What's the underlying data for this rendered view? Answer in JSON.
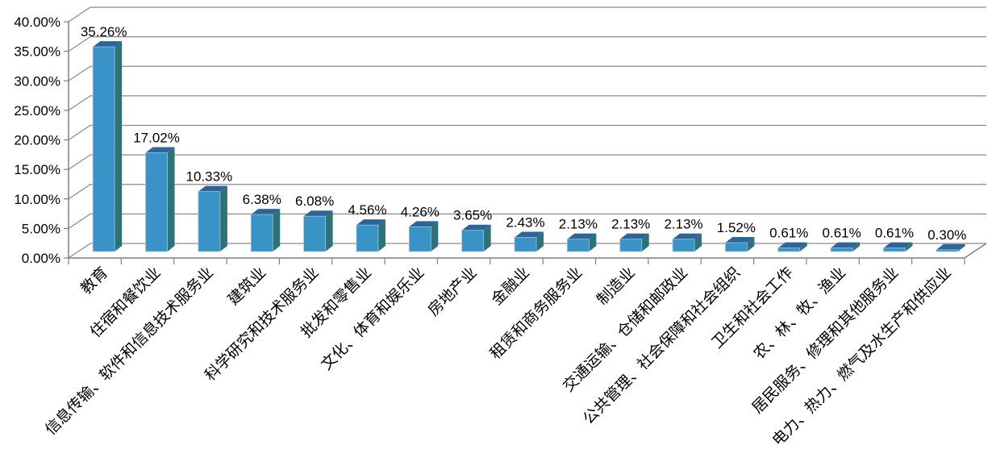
{
  "chart_data": {
    "type": "bar",
    "style": "3d-column",
    "title": "",
    "xlabel": "",
    "ylabel": "",
    "grid": true,
    "legend": null,
    "categories": [
      "教育",
      "住宿和餐饮业",
      "信息传输、软件和信息技术服务业",
      "建筑业",
      "科学研究和技术服务业",
      "批发和零售业",
      "文化、体育和娱乐业",
      "房地产业",
      "金融业",
      "租赁和商务服务业",
      "制造业",
      "交通运输、仓储和邮政业",
      "公共管理、社会保障和社会组织",
      "卫生和社会工作",
      "农、林、牧、渔业",
      "居民服务、修理和其他服务业",
      "电力、热力、燃气及水生产和供应业"
    ],
    "values": [
      35.26,
      17.02,
      10.33,
      6.38,
      6.08,
      4.56,
      4.26,
      3.65,
      2.43,
      2.13,
      2.13,
      2.13,
      1.52,
      0.61,
      0.61,
      0.61,
      0.3
    ],
    "data_labels": [
      "35.26%",
      "17.02%",
      "10.33%",
      "6.38%",
      "6.08%",
      "4.56%",
      "4.26%",
      "3.65%",
      "2.43%",
      "2.13%",
      "2.13%",
      "2.13%",
      "1.52%",
      "0.61%",
      "0.61%",
      "0.61%",
      "0.30%"
    ],
    "y_axis": {
      "min": 0,
      "max": 40,
      "step": 5,
      "tick_labels": [
        "0.00%",
        "5.00%",
        "10.00%",
        "15.00%",
        "20.00%",
        "25.00%",
        "30.00%",
        "35.00%",
        "40.00%"
      ]
    },
    "colors": {
      "bar_front": "#3A93C7",
      "bar_top": "#2E6598",
      "bar_side": "#2E7278",
      "bar_edge": "#9CC5DF",
      "gridline": "#8A8A8A",
      "axis": "#7F7F7F",
      "label_text": "#000000",
      "background": "#FFFFFF"
    }
  }
}
